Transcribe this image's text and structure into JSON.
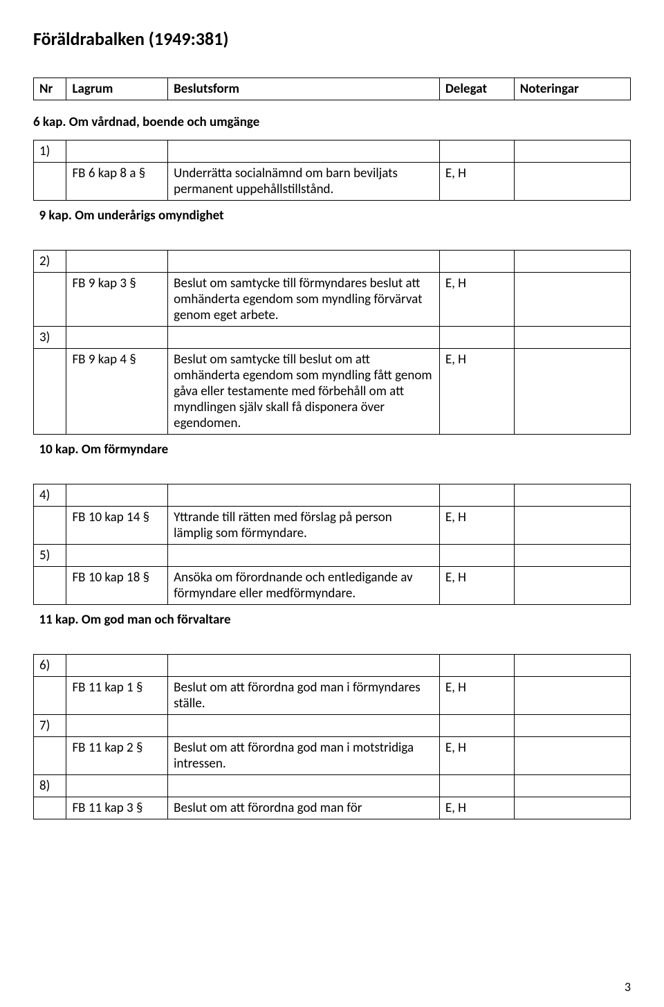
{
  "title": "Föräldrabalken (1949:381)",
  "headers": {
    "nr": "Nr",
    "lagrum": "Lagrum",
    "beslutsform": "Beslutsform",
    "delegat": "Delegat",
    "noteringar": "Noteringar"
  },
  "sections": {
    "s6": "6 kap. Om vårdnad, boende och umgänge",
    "s9": "9 kap. Om underårigs omyndighet",
    "s10": "10 kap. Om förmyndare",
    "s11": "11 kap. Om god man och förvaltare"
  },
  "rows": {
    "r1": {
      "nr": "1)",
      "lag": "FB 6 kap 8 a §",
      "bes": "Underrätta socialnämnd om barn beviljats permanent uppehållstillstånd.",
      "del": "E, H",
      "not": ""
    },
    "r2": {
      "nr": "2)",
      "lag": "FB 9 kap 3 §",
      "bes": "Beslut om samtycke till förmyndares beslut att omhänderta egendom som myndling förvärvat genom eget arbete.",
      "del": "E, H",
      "not": ""
    },
    "r3": {
      "nr": "3)",
      "lag": "FB 9 kap 4 §",
      "bes": "Beslut om samtycke till beslut om att omhänderta egendom som myndling fått genom gåva eller testamente med förbehåll om att myndlingen själv skall få disponera över egendomen.",
      "del": "E, H",
      "not": ""
    },
    "r4": {
      "nr": "4)",
      "lag": "FB 10 kap 14 §",
      "bes": "Yttrande till rätten med förslag på person lämplig som förmyndare.",
      "del": "E, H",
      "not": ""
    },
    "r5": {
      "nr": "5)",
      "lag": "FB 10 kap 18 §",
      "bes": "Ansöka om förordnande och entledigande av förmyndare eller medförmyndare.",
      "del": "E, H",
      "not": ""
    },
    "r6": {
      "nr": "6)",
      "lag": "FB 11 kap 1 §",
      "bes": "Beslut om att förordna god man i förmyndares ställe.",
      "del": "E, H",
      "not": ""
    },
    "r7": {
      "nr": "7)",
      "lag": "FB 11 kap 2 §",
      "bes": "Beslut om att förordna god man i motstridiga intressen.",
      "del": "E, H",
      "not": ""
    },
    "r8": {
      "nr": "8)",
      "lag": "FB 11 kap 3 §",
      "bes": "Beslut om att förordna god man för",
      "del": "E, H",
      "not": ""
    }
  },
  "page_number": "3"
}
